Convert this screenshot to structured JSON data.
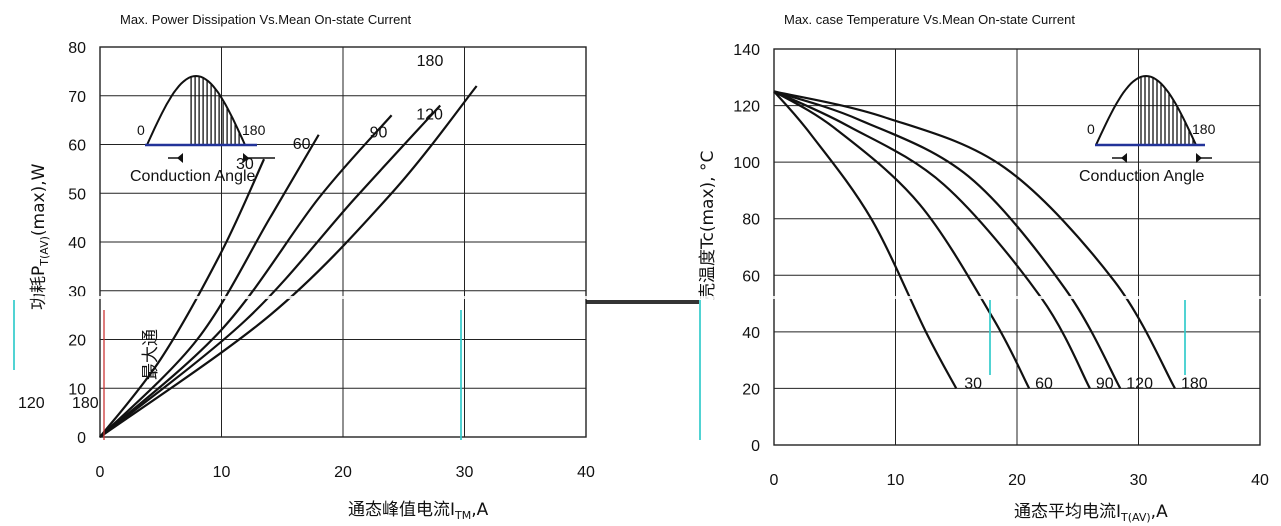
{
  "chart_data": [
    {
      "type": "line",
      "title": "Max. Power Dissipation Vs.Mean On-state Current",
      "xlabel": "通态峰值电流I",
      "xlabel_sub": "TM",
      "xlabel_suffix": ",A",
      "ylabel": "功耗P",
      "ylabel_sub": "T(AV)",
      "ylabel_suffix": "(max),W",
      "ylabel_top_fragment": "最大通",
      "xlim": [
        0,
        40
      ],
      "ylim": [
        0,
        80
      ],
      "xticks": [
        "0",
        "10",
        "20",
        "30",
        "40"
      ],
      "yticks": [
        "0",
        "10",
        "20",
        "30",
        "40",
        "50",
        "60",
        "70",
        "80"
      ],
      "grid": true,
      "series": [
        {
          "name": "30",
          "x": [
            0,
            5,
            10,
            13.5
          ],
          "y": [
            0,
            16,
            38,
            57
          ]
        },
        {
          "name": "60",
          "x": [
            0,
            8,
            14,
            18
          ],
          "y": [
            0,
            20,
            45,
            62
          ]
        },
        {
          "name": "90",
          "x": [
            0,
            10,
            18,
            24
          ],
          "y": [
            0,
            22,
            49,
            66
          ]
        },
        {
          "name": "120",
          "x": [
            0,
            12,
            21,
            28
          ],
          "y": [
            0,
            24,
            49,
            68
          ]
        },
        {
          "name": "180",
          "x": [
            0,
            14,
            24,
            31
          ],
          "y": [
            0,
            25,
            50,
            72
          ]
        }
      ],
      "inset": {
        "left": "0",
        "right": "180",
        "caption": "Conduction Angle"
      }
    },
    {
      "type": "line",
      "title": "Max. case Temperature Vs.Mean On-state Current",
      "xlabel": "通态平均电流I",
      "xlabel_sub": "T(AV)",
      "xlabel_suffix": ",A",
      "ylabel": "壳温度Tc(max), °C",
      "xlim": [
        0,
        40
      ],
      "ylim": [
        0,
        140
      ],
      "xticks": [
        "0",
        "10",
        "20",
        "30",
        "40"
      ],
      "yticks": [
        "0",
        "20",
        "40",
        "60",
        "80",
        "100",
        "120",
        "140"
      ],
      "grid": true,
      "series": [
        {
          "name": "30",
          "x": [
            0,
            3,
            8,
            12.5,
            15
          ],
          "y": [
            125,
            110,
            80,
            40,
            20
          ]
        },
        {
          "name": "60",
          "x": [
            0,
            5,
            12,
            18,
            21
          ],
          "y": [
            125,
            112,
            85,
            45,
            20
          ]
        },
        {
          "name": "90",
          "x": [
            0,
            6,
            14,
            22,
            26
          ],
          "y": [
            125,
            113,
            92,
            52,
            20
          ]
        },
        {
          "name": "120",
          "x": [
            0,
            7,
            16,
            24,
            28.5
          ],
          "y": [
            125,
            115,
            95,
            55,
            20
          ]
        },
        {
          "name": "180",
          "x": [
            0,
            9,
            19,
            28,
            33
          ],
          "y": [
            125,
            116,
            98,
            58,
            20
          ]
        }
      ],
      "inset": {
        "left": "0",
        "right": "180",
        "caption": "Conduction Angle"
      },
      "stray_labels": [
        "120",
        "180"
      ]
    }
  ]
}
